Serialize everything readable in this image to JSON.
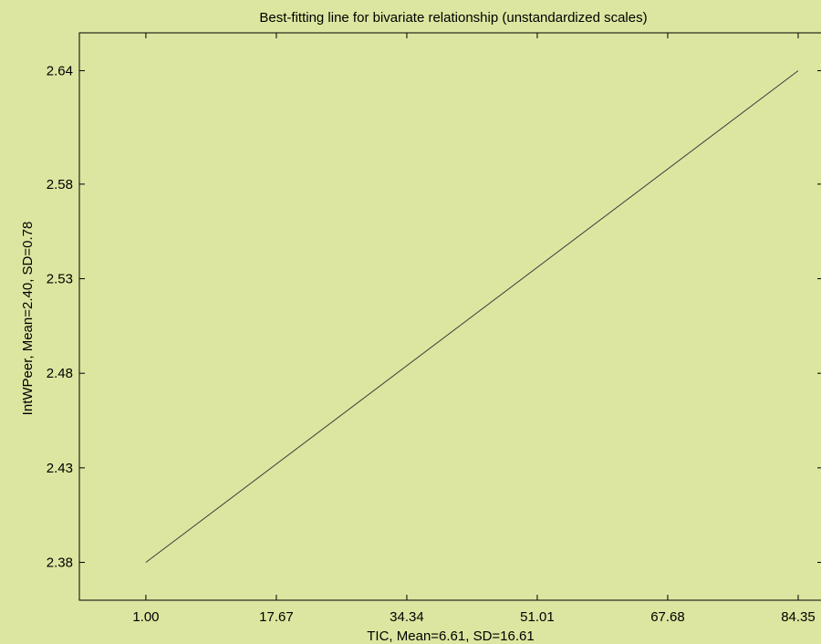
{
  "chart_data": {
    "type": "line",
    "title": "Best-fitting line for bivariate relationship (unstandardized scales)",
    "xlabel": "TIC, Mean=6.61, SD=16.61",
    "ylabel": "IntWPeer, Mean=2.40, SD=0.78",
    "x_ticks": [
      1.0,
      17.67,
      34.34,
      51.01,
      67.68,
      84.35
    ],
    "x_tick_labels": [
      "1.00",
      "17.67",
      "34.34",
      "51.01",
      "67.68",
      "84.35"
    ],
    "y_ticks": [
      2.38,
      2.43,
      2.48,
      2.53,
      2.58,
      2.64
    ],
    "y_tick_labels": [
      "2.38",
      "2.43",
      "2.48",
      "2.53",
      "2.58",
      "2.64"
    ],
    "xlim": [
      -7.5,
      87.5
    ],
    "ylim": [
      2.36,
      2.66
    ],
    "grid": false,
    "colors": {
      "background": "#dce6a0",
      "line": "#3c3c3c",
      "axis": "#000000"
    },
    "series": [
      {
        "x": [
          1.0,
          84.35
        ],
        "y": [
          2.38,
          2.64
        ]
      }
    ]
  }
}
